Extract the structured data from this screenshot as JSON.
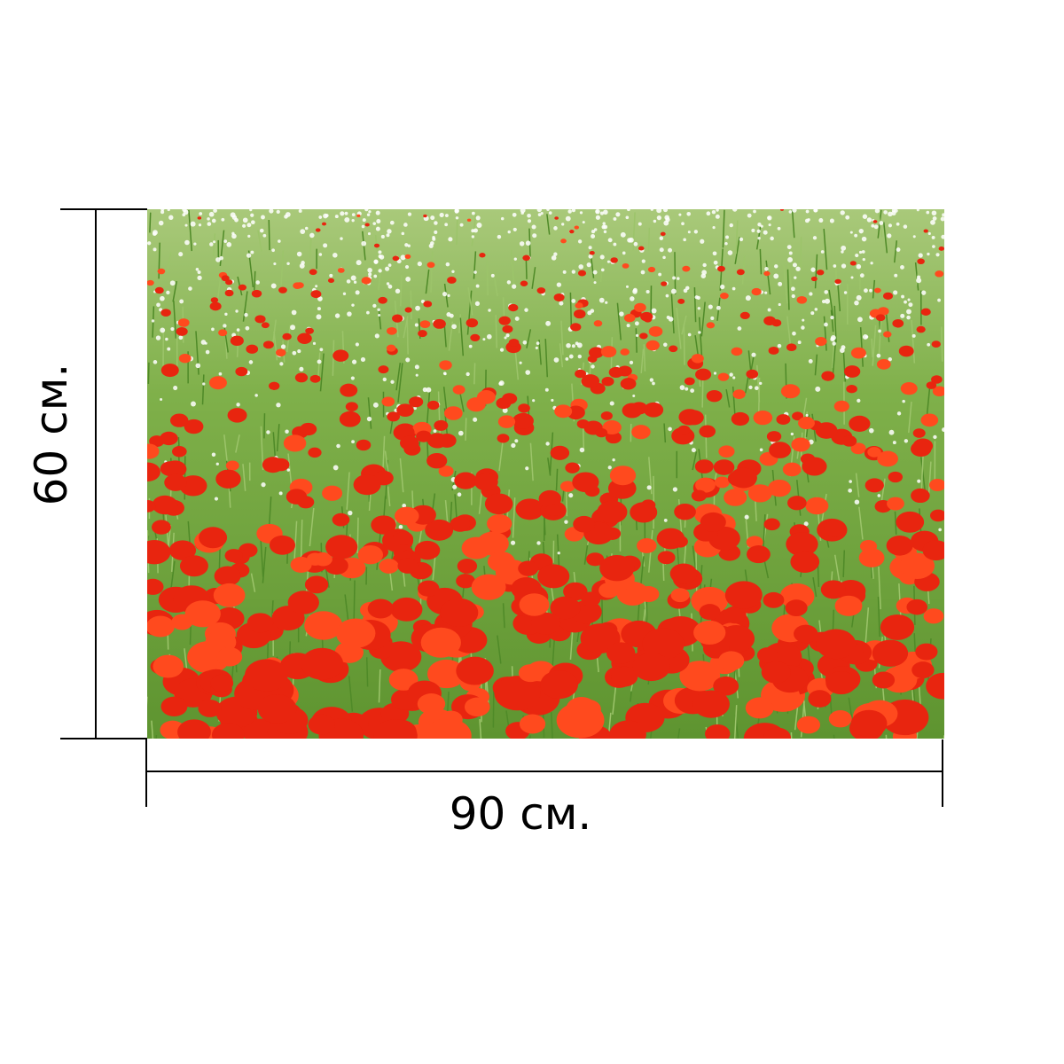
{
  "dimensions": {
    "width_label": "90 см.",
    "height_label": "60 см."
  },
  "photo": {
    "subject": "poppy-field",
    "colors": {
      "grass": "#6fa33a",
      "poppy": "#e8250f",
      "daisy": "#ffffff"
    }
  }
}
